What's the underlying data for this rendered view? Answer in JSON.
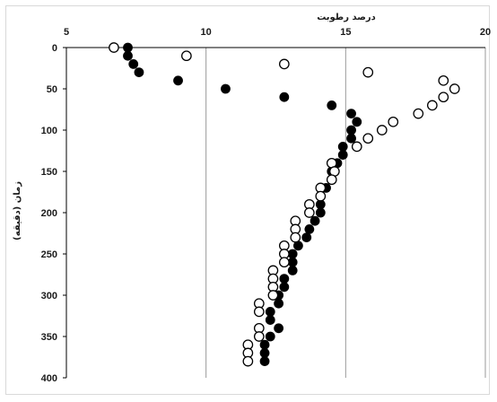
{
  "chart_data": {
    "type": "scatter",
    "title": "",
    "xlabel": "درصد رطوبت",
    "ylabel": "زمان (دقیقه)",
    "xlim": [
      5,
      20
    ],
    "ylim": [
      400,
      0
    ],
    "x_ticks": [
      "5",
      "10",
      "15",
      "20"
    ],
    "y_ticks": [
      "0",
      "50",
      "100",
      "150",
      "200",
      "250",
      "300",
      "350",
      "400"
    ],
    "x_tick_values": [
      5,
      10,
      15,
      20
    ],
    "y_tick_values": [
      0,
      50,
      100,
      150,
      200,
      250,
      300,
      350,
      400
    ],
    "x_axis_position": "top",
    "grid": "vertical",
    "legend": "none",
    "series": [
      {
        "marker": "filled-circle",
        "color": "#000000",
        "points": [
          [
            7.2,
            0
          ],
          [
            7.2,
            10
          ],
          [
            7.4,
            20
          ],
          [
            7.6,
            30
          ],
          [
            9.0,
            40
          ],
          [
            10.7,
            50
          ],
          [
            12.8,
            60
          ],
          [
            14.5,
            70
          ],
          [
            15.2,
            80
          ],
          [
            15.4,
            90
          ],
          [
            15.2,
            100
          ],
          [
            15.2,
            110
          ],
          [
            14.9,
            120
          ],
          [
            14.9,
            130
          ],
          [
            14.7,
            140
          ],
          [
            14.5,
            150
          ],
          [
            14.5,
            160
          ],
          [
            14.3,
            170
          ],
          [
            14.1,
            180
          ],
          [
            14.1,
            190
          ],
          [
            14.1,
            200
          ],
          [
            13.9,
            210
          ],
          [
            13.7,
            220
          ],
          [
            13.6,
            230
          ],
          [
            13.3,
            240
          ],
          [
            13.1,
            250
          ],
          [
            13.1,
            260
          ],
          [
            13.1,
            270
          ],
          [
            12.8,
            280
          ],
          [
            12.8,
            290
          ],
          [
            12.6,
            300
          ],
          [
            12.6,
            310
          ],
          [
            12.3,
            320
          ],
          [
            12.3,
            330
          ],
          [
            12.6,
            340
          ],
          [
            12.3,
            350
          ],
          [
            12.1,
            360
          ],
          [
            12.1,
            370
          ],
          [
            12.1,
            380
          ]
        ]
      },
      {
        "marker": "open-circle",
        "color": "#000000",
        "points": [
          [
            6.7,
            0
          ],
          [
            9.3,
            10
          ],
          [
            12.8,
            20
          ],
          [
            15.8,
            30
          ],
          [
            18.5,
            40
          ],
          [
            18.9,
            50
          ],
          [
            18.5,
            60
          ],
          [
            18.1,
            70
          ],
          [
            17.6,
            80
          ],
          [
            16.7,
            90
          ],
          [
            16.3,
            100
          ],
          [
            15.8,
            110
          ],
          [
            15.4,
            120
          ],
          [
            14.5,
            140
          ],
          [
            14.6,
            150
          ],
          [
            14.5,
            160
          ],
          [
            14.1,
            170
          ],
          [
            14.1,
            180
          ],
          [
            13.7,
            190
          ],
          [
            13.7,
            200
          ],
          [
            13.2,
            210
          ],
          [
            13.2,
            220
          ],
          [
            13.2,
            230
          ],
          [
            12.8,
            240
          ],
          [
            12.8,
            250
          ],
          [
            12.8,
            260
          ],
          [
            12.4,
            270
          ],
          [
            12.4,
            280
          ],
          [
            12.4,
            290
          ],
          [
            12.4,
            300
          ],
          [
            11.9,
            310
          ],
          [
            11.9,
            320
          ],
          [
            11.9,
            340
          ],
          [
            11.9,
            350
          ],
          [
            11.5,
            360
          ],
          [
            11.5,
            370
          ],
          [
            11.5,
            380
          ]
        ]
      }
    ]
  }
}
